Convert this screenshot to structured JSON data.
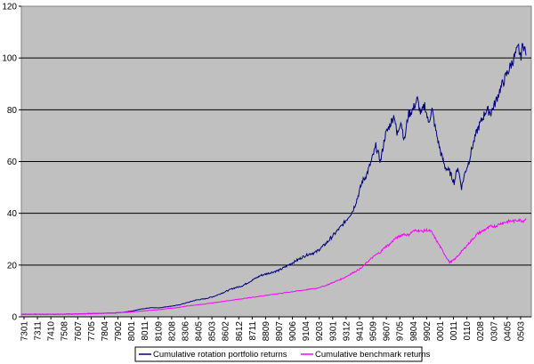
{
  "chart_data": {
    "type": "line",
    "ylim": [
      0,
      120
    ],
    "y_ticks": [
      "0",
      "20",
      "40",
      "60",
      "80",
      "100",
      "120"
    ],
    "grid": "horizontal",
    "plot_background": "#C0C0C0",
    "x_tick_labels": [
      "7301",
      "7311",
      "7410",
      "7508",
      "7607",
      "7705",
      "7804",
      "7902",
      "8001",
      "8011",
      "8109",
      "8208",
      "8306",
      "8405",
      "8503",
      "8602",
      "8612",
      "8711",
      "8809",
      "8907",
      "9006",
      "9104",
      "9203",
      "9301",
      "9312",
      "9410",
      "9509",
      "9607",
      "9705",
      "9804",
      "9902",
      "0001",
      "0011",
      "0110",
      "0208",
      "0307",
      "0405",
      "0503"
    ],
    "legend_position": "bottom",
    "series": [
      {
        "name": "Cumulative rotation portfolio returns",
        "color": "#000080",
        "points": [
          [
            0,
            1
          ],
          [
            10,
            1
          ],
          [
            20,
            1
          ],
          [
            40,
            1
          ],
          [
            60,
            1.1
          ],
          [
            70,
            1.2
          ],
          [
            80,
            1.3
          ],
          [
            90,
            1.4
          ],
          [
            100,
            1.5
          ],
          [
            110,
            1.7
          ],
          [
            120,
            2.2
          ],
          [
            130,
            3
          ],
          [
            140,
            3.5
          ],
          [
            150,
            3.5
          ],
          [
            160,
            4
          ],
          [
            170,
            4.5
          ],
          [
            180,
            5.5
          ],
          [
            190,
            6.5
          ],
          [
            200,
            7
          ],
          [
            210,
            8
          ],
          [
            220,
            9.5
          ],
          [
            230,
            11
          ],
          [
            240,
            12
          ],
          [
            250,
            14
          ],
          [
            260,
            16
          ],
          [
            270,
            17
          ],
          [
            280,
            18
          ],
          [
            290,
            20
          ],
          [
            300,
            22
          ],
          [
            310,
            24
          ],
          [
            320,
            25
          ],
          [
            330,
            28
          ],
          [
            340,
            32
          ],
          [
            350,
            36
          ],
          [
            360,
            41
          ],
          [
            365,
            46
          ],
          [
            370,
            52
          ],
          [
            375,
            55
          ],
          [
            380,
            60
          ],
          [
            385,
            66
          ],
          [
            390,
            60
          ],
          [
            395,
            70
          ],
          [
            400,
            74
          ],
          [
            405,
            78
          ],
          [
            408,
            70
          ],
          [
            412,
            76
          ],
          [
            416,
            68
          ],
          [
            420,
            78
          ],
          [
            425,
            80
          ],
          [
            430,
            84
          ],
          [
            434,
            78
          ],
          [
            438,
            82
          ],
          [
            442,
            75
          ],
          [
            446,
            80
          ],
          [
            450,
            72
          ],
          [
            455,
            64
          ],
          [
            460,
            58
          ],
          [
            465,
            56
          ],
          [
            470,
            52
          ],
          [
            474,
            58
          ],
          [
            478,
            50
          ],
          [
            482,
            56
          ],
          [
            486,
            60
          ],
          [
            490,
            66
          ],
          [
            495,
            72
          ],
          [
            500,
            76
          ],
          [
            505,
            80
          ],
          [
            510,
            79
          ],
          [
            515,
            83
          ],
          [
            520,
            88
          ],
          [
            525,
            92
          ],
          [
            530,
            96
          ],
          [
            535,
            100
          ],
          [
            540,
            104
          ],
          [
            542,
            100
          ],
          [
            545,
            106
          ],
          [
            548,
            101
          ]
        ]
      },
      {
        "name": "Cumulative benchmark returns",
        "color": "#FF00FF",
        "points": [
          [
            0,
            1
          ],
          [
            20,
            1
          ],
          [
            40,
            1
          ],
          [
            60,
            1.1
          ],
          [
            80,
            1.3
          ],
          [
            100,
            1.5
          ],
          [
            110,
            1.7
          ],
          [
            120,
            1.9
          ],
          [
            130,
            2.2
          ],
          [
            140,
            2.5
          ],
          [
            150,
            2.8
          ],
          [
            160,
            3.2
          ],
          [
            170,
            3.6
          ],
          [
            180,
            4.2
          ],
          [
            190,
            4.6
          ],
          [
            200,
            5
          ],
          [
            210,
            5.5
          ],
          [
            220,
            6
          ],
          [
            230,
            6.5
          ],
          [
            240,
            7
          ],
          [
            250,
            7.5
          ],
          [
            260,
            8
          ],
          [
            270,
            8.5
          ],
          [
            280,
            9
          ],
          [
            290,
            9.5
          ],
          [
            300,
            10
          ],
          [
            310,
            10.5
          ],
          [
            320,
            11
          ],
          [
            330,
            12
          ],
          [
            340,
            13.5
          ],
          [
            350,
            15
          ],
          [
            360,
            17
          ],
          [
            365,
            18
          ],
          [
            370,
            19
          ],
          [
            375,
            21
          ],
          [
            380,
            22.5
          ],
          [
            385,
            24
          ],
          [
            390,
            25
          ],
          [
            395,
            27
          ],
          [
            400,
            28
          ],
          [
            405,
            30
          ],
          [
            410,
            31
          ],
          [
            415,
            32
          ],
          [
            420,
            31.5
          ],
          [
            425,
            33
          ],
          [
            430,
            33.5
          ],
          [
            435,
            33
          ],
          [
            440,
            33.5
          ],
          [
            445,
            33
          ],
          [
            450,
            30
          ],
          [
            455,
            27
          ],
          [
            460,
            24
          ],
          [
            465,
            21
          ],
          [
            470,
            22
          ],
          [
            475,
            24
          ],
          [
            480,
            26
          ],
          [
            485,
            28
          ],
          [
            490,
            30
          ],
          [
            495,
            32
          ],
          [
            500,
            33
          ],
          [
            505,
            34
          ],
          [
            510,
            35
          ],
          [
            515,
            35
          ],
          [
            520,
            36
          ],
          [
            525,
            36.5
          ],
          [
            530,
            37
          ],
          [
            535,
            37
          ],
          [
            540,
            37.5
          ],
          [
            545,
            37
          ],
          [
            548,
            38
          ]
        ]
      }
    ]
  }
}
